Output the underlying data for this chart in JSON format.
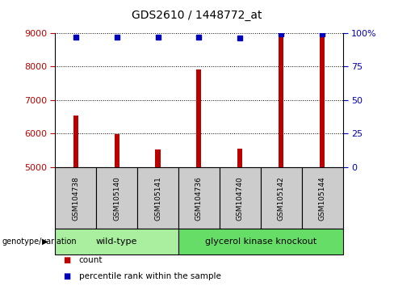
{
  "title": "GDS2610 / 1448772_at",
  "samples": [
    "GSM104738",
    "GSM105140",
    "GSM105141",
    "GSM104736",
    "GSM104740",
    "GSM105142",
    "GSM105144"
  ],
  "counts": [
    6550,
    5980,
    5520,
    7900,
    5560,
    8900,
    8900
  ],
  "percentile_ranks": [
    97,
    97,
    97,
    97,
    96,
    99,
    99
  ],
  "ymin": 5000,
  "ymax": 9000,
  "yticks_left": [
    5000,
    6000,
    7000,
    8000,
    9000
  ],
  "yticks_right": [
    0,
    25,
    50,
    75,
    100
  ],
  "yticks_right_vals": [
    5000,
    6000,
    7000,
    8000,
    9000
  ],
  "groups": [
    {
      "label": "wild-type",
      "indices": [
        0,
        1,
        2
      ],
      "color": "#AAEEA0"
    },
    {
      "label": "glycerol kinase knockout",
      "indices": [
        3,
        4,
        5,
        6
      ],
      "color": "#66DD66"
    }
  ],
  "group_label": "genotype/variation",
  "bar_color": "#BB0000",
  "bar_width": 0.12,
  "dot_color": "#0000BB",
  "legend_count_color": "#BB0000",
  "legend_pct_color": "#0000BB",
  "background_color": "#FFFFFF",
  "sample_box_color": "#CCCCCC",
  "title_fontsize": 10,
  "tick_fontsize": 8,
  "sample_fontsize": 6.5,
  "group_fontsize": 8,
  "legend_fontsize": 7.5
}
